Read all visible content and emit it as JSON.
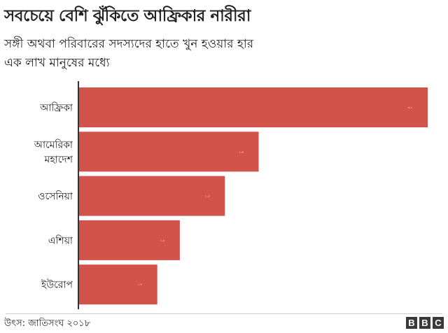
{
  "title": "সবচেয়ে বেশি ঝুঁকিতে আফ্রিকার নারীরা",
  "subtitle_lines": [
    "সঙ্গী অথবা পরিবারের সদস্যদের হাতে খুন হওয়ার হার",
    "এক লাখ মানুষের মধ্যে"
  ],
  "source": "উৎস: জাতিসংঘ ২০১৮",
  "logo_letters": [
    "B",
    "B",
    "C"
  ],
  "colors": {
    "bar": "#d1534a",
    "axis": "#333333",
    "text": "#222222"
  },
  "chart_data": {
    "type": "bar",
    "orientation": "horizontal",
    "categories": [
      [
        "আফ্রিকা"
      ],
      [
        "আমেরিকা",
        "মহাদেশ"
      ],
      [
        "ওসেনিয়া"
      ],
      [
        "এশিয়া"
      ],
      [
        "ইউরোপ"
      ]
    ],
    "values": [
      3.1,
      1.6,
      1.3,
      0.9,
      0.7
    ],
    "value_labels": [
      "৩.১",
      "১.৬",
      "১.৩",
      "০.৯",
      "০.৭"
    ],
    "xlim": [
      0,
      3.1
    ],
    "xlabel": "",
    "ylabel": "",
    "grid": false
  }
}
